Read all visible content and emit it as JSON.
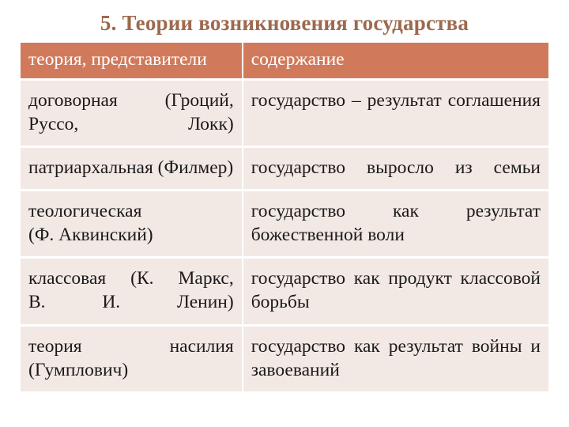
{
  "colors": {
    "title_color": "#9e694d",
    "header_bg": "#d17a5b",
    "header_text": "#ffffff",
    "row_bg": "#f2e8e4",
    "row_text": "#1a1a1a",
    "border_spacer": "#ffffff"
  },
  "typography": {
    "title_fontsize": 27,
    "cell_fontsize": 23.5
  },
  "title": "5. Теории возникновения государства",
  "table": {
    "columns": [
      "теория, представители",
      "содержание"
    ],
    "rows": [
      {
        "col1": "договорная (Гроций, Руссо, Локк)",
        "col2": "государство – результат соглашения"
      },
      {
        "col1": "патриархальная (Филмер)",
        "col2": "государство выросло из семьи"
      },
      {
        "col1": "теологическая (Ф. Аквинский)",
        "col2": "государство как результат божественной воли"
      },
      {
        "col1": "классовая (К. Маркс, В. И. Ленин)",
        "col2": "государство как продукт классовой борьбы"
      },
      {
        "col1": "теория насилия (Гумплович)",
        "col2": "государство как результат войны и завоеваний"
      }
    ]
  }
}
